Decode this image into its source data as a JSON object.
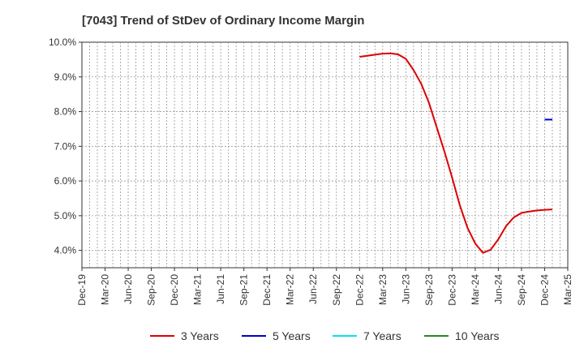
{
  "chart_data": {
    "type": "line",
    "title": "[7043]  Trend of StDev of Ordinary Income Margin",
    "xlabel": "",
    "ylabel": "",
    "x_ticks": [
      "Dec-19",
      "Mar-20",
      "Jun-20",
      "Sep-20",
      "Dec-20",
      "Mar-21",
      "Jun-21",
      "Sep-21",
      "Dec-21",
      "Mar-22",
      "Jun-22",
      "Sep-22",
      "Dec-22",
      "Mar-23",
      "Jun-23",
      "Sep-23",
      "Dec-23",
      "Mar-24",
      "Jun-24",
      "Sep-24",
      "Dec-24",
      "Mar-25"
    ],
    "y_ticks": [
      "4.0%",
      "5.0%",
      "6.0%",
      "7.0%",
      "8.0%",
      "9.0%",
      "10.0%"
    ],
    "ylim": [
      3.5,
      10.0
    ],
    "grid": true,
    "legend_position": "bottom",
    "series": [
      {
        "name": "3 Years",
        "color": "#dd0000",
        "points": [
          {
            "x": "Dec-22",
            "y": 9.58
          },
          {
            "x": "Jan-23",
            "y": 9.61
          },
          {
            "x": "Feb-23",
            "y": 9.64
          },
          {
            "x": "Mar-23",
            "y": 9.67
          },
          {
            "x": "Apr-23",
            "y": 9.68
          },
          {
            "x": "May-23",
            "y": 9.65
          },
          {
            "x": "Jun-23",
            "y": 9.52
          },
          {
            "x": "Jul-23",
            "y": 9.2
          },
          {
            "x": "Aug-23",
            "y": 8.8
          },
          {
            "x": "Sep-23",
            "y": 8.25
          },
          {
            "x": "Oct-23",
            "y": 7.55
          },
          {
            "x": "Nov-23",
            "y": 6.85
          },
          {
            "x": "Dec-23",
            "y": 6.1
          },
          {
            "x": "Jan-24",
            "y": 5.3
          },
          {
            "x": "Feb-24",
            "y": 4.65
          },
          {
            "x": "Mar-24",
            "y": 4.2
          },
          {
            "x": "Apr-24",
            "y": 3.93
          },
          {
            "x": "May-24",
            "y": 4.02
          },
          {
            "x": "Jun-24",
            "y": 4.32
          },
          {
            "x": "Jul-24",
            "y": 4.7
          },
          {
            "x": "Aug-24",
            "y": 4.95
          },
          {
            "x": "Sep-24",
            "y": 5.08
          },
          {
            "x": "Oct-24",
            "y": 5.12
          },
          {
            "x": "Nov-24",
            "y": 5.15
          },
          {
            "x": "Dec-24",
            "y": 5.17
          },
          {
            "x": "Jan-25",
            "y": 5.18
          }
        ]
      },
      {
        "name": "5 Years",
        "color": "#0000cc",
        "points": [
          {
            "x": "Dec-24",
            "y": 7.77
          },
          {
            "x": "Jan-25",
            "y": 7.77
          }
        ]
      },
      {
        "name": "7 Years",
        "color": "#00e5ee",
        "points": []
      },
      {
        "name": "10 Years",
        "color": "#228b22",
        "points": []
      }
    ]
  }
}
